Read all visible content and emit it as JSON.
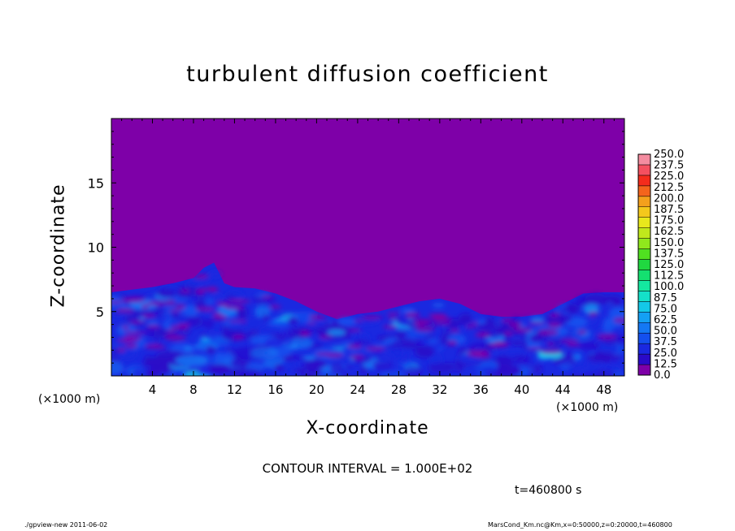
{
  "chart_data": {
    "type": "heatmap",
    "title": "turbulent diffusion coefficient",
    "xlabel": "X-coordinate",
    "ylabel": "Z-coordinate",
    "x_unit_left": "(×1000 m)",
    "x_unit_right": "(×1000 m)",
    "xlim": [
      0,
      50
    ],
    "ylim": [
      0,
      20
    ],
    "x_ticks": [
      4,
      8,
      12,
      16,
      20,
      24,
      28,
      32,
      36,
      40,
      44,
      48
    ],
    "x_tick_labels": [
      "4",
      "8",
      "12",
      "16",
      "20",
      "24",
      "28",
      "32",
      "36",
      "40",
      "44",
      "48"
    ],
    "y_ticks": [
      5,
      10,
      15
    ],
    "y_tick_labels": [
      "5",
      "10",
      "15"
    ],
    "colorbar_levels": [
      "0.0",
      "12.5",
      "25.0",
      "37.5",
      "50.0",
      "62.5",
      "75.0",
      "87.5",
      "100.0",
      "112.5",
      "125.0",
      "137.5",
      "150.0",
      "162.5",
      "175.0",
      "187.5",
      "200.0",
      "212.5",
      "225.0",
      "237.5",
      "250.0"
    ],
    "colorbar_colors": [
      "#7e00a8",
      "#2a0ac8",
      "#1a28e0",
      "#1450ee",
      "#1478f4",
      "#14a0f4",
      "#14c8e8",
      "#14e0c8",
      "#14e8a0",
      "#14e070",
      "#20d840",
      "#50e020",
      "#90e81c",
      "#c0e81c",
      "#e8e81c",
      "#f4c81c",
      "#f4a01c",
      "#f4641c",
      "#f42c1c",
      "#f45060",
      "#f48ca0"
    ],
    "background_color": "#7e00a8",
    "contour_interval_text": "CONTOUR INTERVAL = 1.000E+02",
    "time_text": "t=460800 s",
    "footer_left": "./gpview-new  2011-06-02",
    "footer_right": "MarsCond_Km.nc@Km,x=0:50000,z=0:20000,t=460800",
    "boundary_layer_top_km": [
      [
        0,
        6.5
      ],
      [
        2,
        6.7
      ],
      [
        4,
        6.9
      ],
      [
        6,
        7.2
      ],
      [
        8,
        7.6
      ],
      [
        9,
        8.4
      ],
      [
        10,
        8.8
      ],
      [
        11,
        7.2
      ],
      [
        12,
        6.9
      ],
      [
        14,
        6.8
      ],
      [
        16,
        6.4
      ],
      [
        18,
        5.8
      ],
      [
        20,
        5.0
      ],
      [
        22,
        4.4
      ],
      [
        24,
        4.8
      ],
      [
        26,
        5.0
      ],
      [
        28,
        5.4
      ],
      [
        30,
        5.8
      ],
      [
        32,
        6.0
      ],
      [
        34,
        5.6
      ],
      [
        36,
        4.8
      ],
      [
        38,
        4.6
      ],
      [
        40,
        4.6
      ],
      [
        42,
        4.8
      ],
      [
        44,
        5.6
      ],
      [
        46,
        6.4
      ],
      [
        48,
        6.5
      ],
      [
        50,
        6.5
      ]
    ]
  }
}
